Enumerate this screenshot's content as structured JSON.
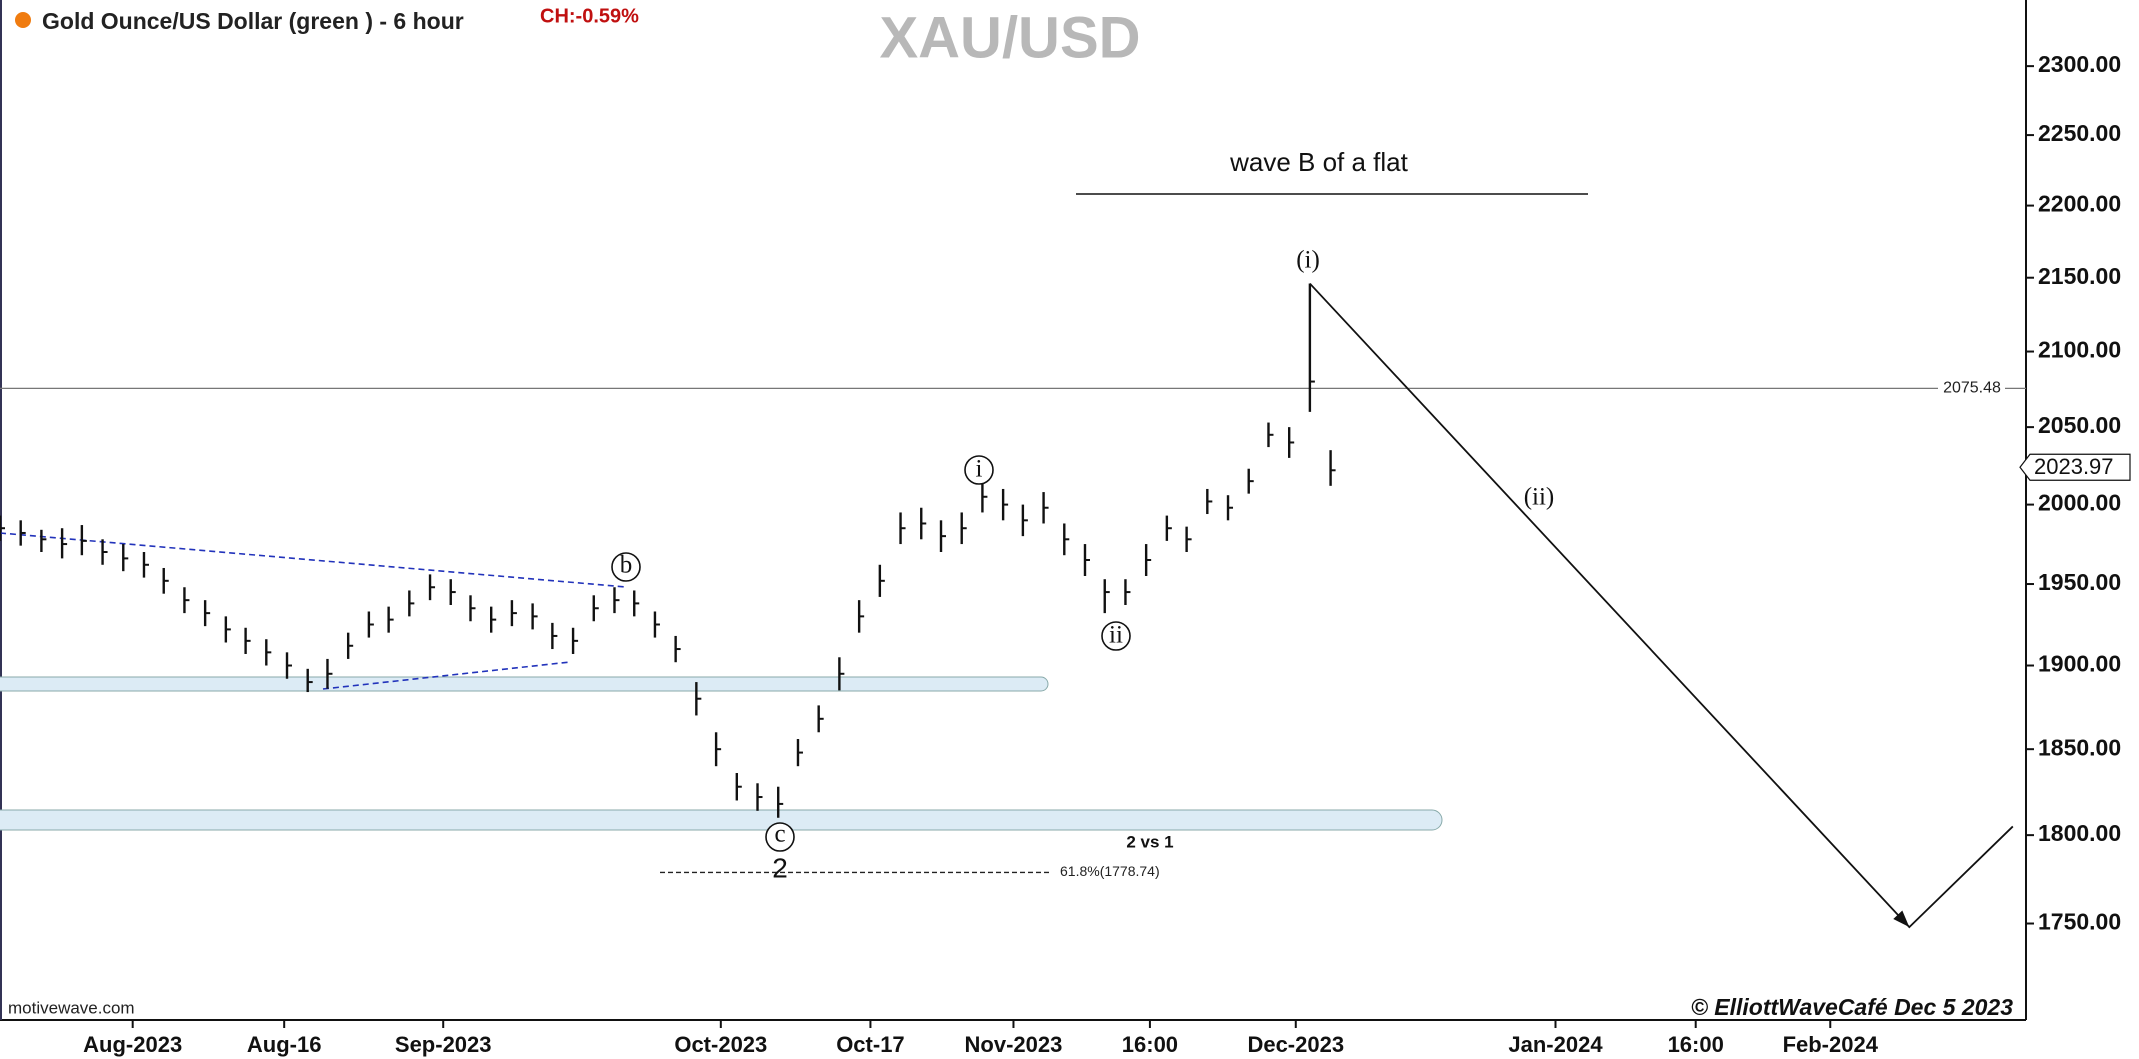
{
  "chart_data": {
    "type": "ohlc",
    "title": "XAU/USD",
    "subtitle": "Gold Ounce/US Dollar (green ) - 6 hour",
    "change": "CH:-0.59%",
    "color": "#111111",
    "log_scale": true,
    "xlim": [
      -14.1,
      201.2
    ],
    "xticks": [
      {
        "value": 0,
        "label": "Aug-2023"
      },
      {
        "value": 16.1,
        "label": "Aug-16"
      },
      {
        "value": 33,
        "label": "Sep-2023"
      },
      {
        "value": 62.5,
        "label": "Oct-2023"
      },
      {
        "value": 78.4,
        "label": "Oct-17"
      },
      {
        "value": 93.6,
        "label": "Nov-2023"
      },
      {
        "value": 108.1,
        "label": "16:00"
      },
      {
        "value": 123.6,
        "label": "Dec-2023"
      },
      {
        "value": 151.2,
        "label": "Jan-2024"
      },
      {
        "value": 166.1,
        "label": "16:00"
      },
      {
        "value": 180.4,
        "label": "Feb-2024"
      }
    ],
    "ylim": [
      1697,
      2349
    ],
    "yticks": [
      {
        "value": 1750,
        "label": "1750.00"
      },
      {
        "value": 1800,
        "label": "1800.00"
      },
      {
        "value": 1850,
        "label": "1850.00"
      },
      {
        "value": 1900,
        "label": "1900.00"
      },
      {
        "value": 1950,
        "label": "1950.00"
      },
      {
        "value": 2000,
        "label": "2000.00"
      },
      {
        "value": 2050,
        "label": "2050.00"
      },
      {
        "value": 2100,
        "label": "2100.00"
      },
      {
        "value": 2150,
        "label": "2150.00"
      },
      {
        "value": 2200,
        "label": "2200.00"
      },
      {
        "value": 2250,
        "label": "2250.00"
      },
      {
        "value": 2300,
        "label": "2300.00"
      }
    ],
    "x": [
      -14.1,
      -11.9,
      -9.7,
      -7.5,
      -5.4,
      -3.2,
      -1.0,
      1.2,
      3.3,
      5.5,
      7.7,
      9.9,
      12.0,
      14.2,
      16.4,
      18.6,
      20.7,
      22.9,
      25.1,
      27.2,
      29.4,
      31.6,
      33.8,
      35.9,
      38.1,
      40.3,
      42.5,
      44.6,
      46.8,
      49.0,
      51.2,
      53.3,
      55.5,
      57.7,
      59.9,
      62.0,
      64.2,
      66.4,
      68.6,
      70.7,
      72.9,
      75.1,
      77.2,
      79.4,
      81.6,
      83.8,
      85.9,
      88.1,
      90.3,
      92.5,
      94.6,
      96.8,
      99.0,
      101.2,
      103.3,
      105.5,
      107.7,
      109.9,
      112.0,
      114.2,
      116.4,
      118.6,
      120.7,
      122.9,
      125.1,
      127.3
    ],
    "high": [
      1993,
      1990,
      1984,
      1985,
      1987,
      1978,
      1975,
      1970,
      1960,
      1948,
      1940,
      1930,
      1923,
      1916,
      1908,
      1898,
      1904,
      1920,
      1933,
      1936,
      1946,
      1956,
      1953,
      1943,
      1936,
      1940,
      1938,
      1926,
      1923,
      1943,
      1948,
      1946,
      1933,
      1918,
      1890,
      1860,
      1836,
      1830,
      1828,
      1856,
      1876,
      1905,
      1940,
      1962,
      1995,
      1998,
      1990,
      1995,
      2015,
      2010,
      2000,
      2008,
      1988,
      1975,
      1953,
      1953,
      1975,
      1993,
      1986,
      2010,
      2006,
      2023,
      2053,
      2050,
      2146,
      2035
    ],
    "low": [
      1977,
      1974,
      1970,
      1966,
      1968,
      1962,
      1958,
      1954,
      1944,
      1932,
      1924,
      1914,
      1907,
      1900,
      1892,
      1884,
      1886,
      1904,
      1917,
      1920,
      1930,
      1940,
      1937,
      1927,
      1920,
      1924,
      1922,
      1910,
      1907,
      1927,
      1932,
      1930,
      1917,
      1902,
      1870,
      1840,
      1820,
      1814,
      1810,
      1840,
      1860,
      1885,
      1920,
      1942,
      1975,
      1978,
      1970,
      1975,
      1995,
      1990,
      1980,
      1988,
      1968,
      1955,
      1932,
      1937,
      1955,
      1977,
      1970,
      1994,
      1990,
      2007,
      2037,
      2030,
      2060,
      2012
    ],
    "close": [
      1985,
      1982,
      1978,
      1975,
      1977,
      1970,
      1966,
      1962,
      1952,
      1940,
      1932,
      1922,
      1915,
      1908,
      1900,
      1890,
      1895,
      1912,
      1925,
      1928,
      1938,
      1948,
      1945,
      1935,
      1928,
      1932,
      1930,
      1918,
      1915,
      1935,
      1940,
      1938,
      1925,
      1910,
      1880,
      1850,
      1828,
      1822,
      1818,
      1848,
      1868,
      1895,
      1930,
      1952,
      1985,
      1988,
      1980,
      1985,
      2005,
      2000,
      1990,
      1998,
      1978,
      1965,
      1945,
      1945,
      1965,
      1985,
      1978,
      2002,
      1998,
      2015,
      2045,
      2040,
      2080,
      2022
    ],
    "last_price": 2023.97,
    "hline": 2075.48,
    "fib": {
      "value": 1778.74,
      "label": "61.8%(1778.74)"
    },
    "projection": {
      "x": [
        125.1,
        188.8,
        199.8
      ],
      "y": [
        2146,
        1748,
        1805
      ]
    },
    "annotations": {
      "wave_b": "wave B of a flat",
      "wave_i": "(i)",
      "wave_ii": "(ii)",
      "minor_i": "i",
      "minor_ii": "ii",
      "b": "b",
      "c": "c",
      "two": "2",
      "two_vs_one": "2 vs 1"
    },
    "source": "motivewave.com",
    "copyright": "© ElliottWaveCafé Dec 5 2023"
  }
}
